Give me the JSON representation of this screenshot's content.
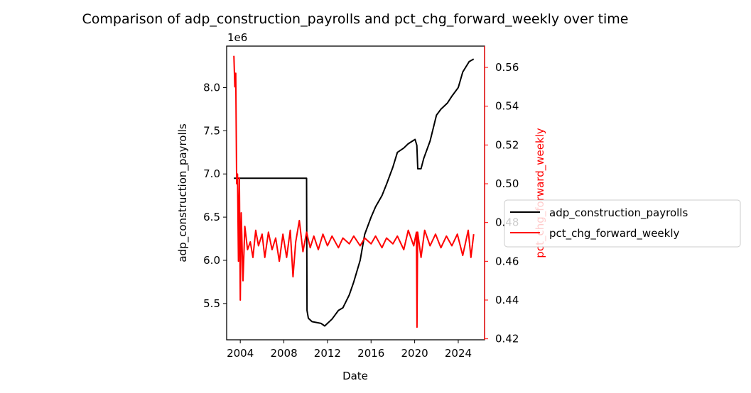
{
  "chart_data": {
    "type": "line",
    "title": "Comparison of adp_construction_payrolls and pct_chg_forward_weekly over time",
    "xlabel": "Date",
    "x_range": [
      "2002-10-01",
      "2026-06-01"
    ],
    "x_ticks": [
      "2004",
      "2008",
      "2012",
      "2016",
      "2020",
      "2024"
    ],
    "grid": false,
    "legend_placement": "outside right",
    "left_axis": {
      "label": "adp_construction_payrolls",
      "scale_factor_label": "1e6",
      "range": [
        5.08,
        8.48
      ],
      "ticks": [
        "5.5",
        "6.0",
        "6.5",
        "7.0",
        "7.5",
        "8.0"
      ],
      "color": "#000000"
    },
    "right_axis": {
      "label": "pct_chg_forward_weekly",
      "range": [
        0.4195,
        0.571
      ],
      "ticks": [
        "0.42",
        "0.44",
        "0.46",
        "0.48",
        "0.50",
        "0.52",
        "0.54",
        "0.56"
      ],
      "color": "#ff0000"
    },
    "series": [
      {
        "name": "adp_construction_payrolls",
        "axis": "left",
        "color": "#000000",
        "points": [
          [
            "2003-06-01",
            6.95
          ],
          [
            "2010-02-01",
            6.95
          ],
          [
            "2010-02-15",
            5.42
          ],
          [
            "2010-04-01",
            5.33
          ],
          [
            "2010-08-01",
            5.29
          ],
          [
            "2011-06-01",
            5.27
          ],
          [
            "2011-10-01",
            5.24
          ],
          [
            "2012-06-01",
            5.32
          ],
          [
            "2013-01-01",
            5.42
          ],
          [
            "2013-06-01",
            5.45
          ],
          [
            "2014-01-01",
            5.6
          ],
          [
            "2014-06-01",
            5.75
          ],
          [
            "2015-01-01",
            6.0
          ],
          [
            "2015-06-01",
            6.3
          ],
          [
            "2016-01-01",
            6.5
          ],
          [
            "2016-06-01",
            6.62
          ],
          [
            "2017-01-01",
            6.75
          ],
          [
            "2017-06-01",
            6.88
          ],
          [
            "2018-01-01",
            7.08
          ],
          [
            "2018-06-01",
            7.25
          ],
          [
            "2019-01-01",
            7.3
          ],
          [
            "2019-06-01",
            7.35
          ],
          [
            "2020-01-15",
            7.4
          ],
          [
            "2020-03-15",
            7.33
          ],
          [
            "2020-04-15",
            7.06
          ],
          [
            "2020-08-01",
            7.06
          ],
          [
            "2020-11-01",
            7.18
          ],
          [
            "2021-06-01",
            7.38
          ],
          [
            "2022-01-01",
            7.68
          ],
          [
            "2022-06-01",
            7.75
          ],
          [
            "2023-01-01",
            7.82
          ],
          [
            "2023-06-01",
            7.9
          ],
          [
            "2024-01-01",
            8.0
          ],
          [
            "2024-06-01",
            8.18
          ],
          [
            "2025-01-01",
            8.3
          ],
          [
            "2025-06-01",
            8.33
          ]
        ]
      },
      {
        "name": "pct_chg_forward_weekly",
        "axis": "right",
        "color": "#ff0000",
        "points": [
          [
            "2003-06-01",
            0.566
          ],
          [
            "2003-07-01",
            0.55
          ],
          [
            "2003-08-01",
            0.557
          ],
          [
            "2003-09-01",
            0.5
          ],
          [
            "2003-10-01",
            0.505
          ],
          [
            "2003-11-01",
            0.46
          ],
          [
            "2003-12-01",
            0.503
          ],
          [
            "2004-01-01",
            0.44
          ],
          [
            "2004-02-01",
            0.485
          ],
          [
            "2004-04-01",
            0.45
          ],
          [
            "2004-06-01",
            0.478
          ],
          [
            "2004-09-01",
            0.466
          ],
          [
            "2004-12-01",
            0.47
          ],
          [
            "2005-03-01",
            0.462
          ],
          [
            "2005-06-01",
            0.476
          ],
          [
            "2005-09-01",
            0.468
          ],
          [
            "2006-01-01",
            0.474
          ],
          [
            "2006-04-01",
            0.462
          ],
          [
            "2006-08-01",
            0.475
          ],
          [
            "2006-12-01",
            0.466
          ],
          [
            "2007-04-01",
            0.472
          ],
          [
            "2007-08-01",
            0.46
          ],
          [
            "2007-12-01",
            0.474
          ],
          [
            "2008-04-01",
            0.462
          ],
          [
            "2008-08-01",
            0.476
          ],
          [
            "2008-11-01",
            0.452
          ],
          [
            "2009-02-01",
            0.47
          ],
          [
            "2009-06-01",
            0.481
          ],
          [
            "2009-10-01",
            0.465
          ],
          [
            "2010-02-01",
            0.475
          ],
          [
            "2010-06-01",
            0.467
          ],
          [
            "2010-10-01",
            0.473
          ],
          [
            "2011-03-01",
            0.466
          ],
          [
            "2011-08-01",
            0.474
          ],
          [
            "2012-01-01",
            0.468
          ],
          [
            "2012-06-01",
            0.473
          ],
          [
            "2013-01-01",
            0.467
          ],
          [
            "2013-06-01",
            0.472
          ],
          [
            "2014-01-01",
            0.469
          ],
          [
            "2014-06-01",
            0.473
          ],
          [
            "2015-01-01",
            0.468
          ],
          [
            "2015-06-01",
            0.472
          ],
          [
            "2016-01-01",
            0.469
          ],
          [
            "2016-06-01",
            0.473
          ],
          [
            "2017-01-01",
            0.467
          ],
          [
            "2017-06-01",
            0.472
          ],
          [
            "2018-01-01",
            0.469
          ],
          [
            "2018-06-01",
            0.473
          ],
          [
            "2019-01-01",
            0.466
          ],
          [
            "2019-06-01",
            0.476
          ],
          [
            "2019-12-01",
            0.468
          ],
          [
            "2020-03-01",
            0.475
          ],
          [
            "2020-03-20",
            0.426
          ],
          [
            "2020-04-10",
            0.475
          ],
          [
            "2020-08-01",
            0.462
          ],
          [
            "2020-12-01",
            0.476
          ],
          [
            "2021-06-01",
            0.468
          ],
          [
            "2021-12-01",
            0.474
          ],
          [
            "2022-06-01",
            0.467
          ],
          [
            "2022-12-01",
            0.473
          ],
          [
            "2023-06-01",
            0.468
          ],
          [
            "2023-12-01",
            0.474
          ],
          [
            "2024-06-01",
            0.463
          ],
          [
            "2024-12-01",
            0.476
          ],
          [
            "2025-03-01",
            0.462
          ],
          [
            "2025-06-01",
            0.474
          ]
        ]
      }
    ]
  }
}
